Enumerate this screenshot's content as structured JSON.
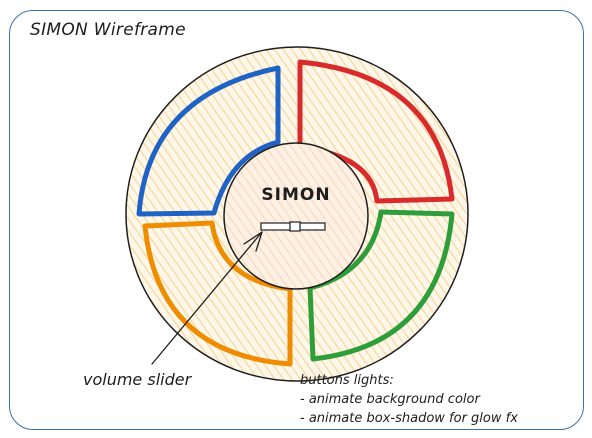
{
  "title": "SIMON Wireframe",
  "center": {
    "label": "SIMON"
  },
  "buttons": [
    {
      "name": "blue",
      "color": "#1f64c4"
    },
    {
      "name": "red",
      "color": "#d92b2b"
    },
    {
      "name": "orange",
      "color": "#f08c00"
    },
    {
      "name": "green",
      "color": "#2e9e3a"
    }
  ],
  "annotation": {
    "text": "volume slider"
  },
  "notes": {
    "heading": "buttons lights:",
    "items": [
      "- animate background color",
      "- animate box-shadow for glow fx"
    ]
  },
  "colors": {
    "frame": "#3a70b0",
    "stroke": "#1e1e1e",
    "fill_hatch": "#fbe3b5",
    "center_fill": "#fde8d8"
  }
}
